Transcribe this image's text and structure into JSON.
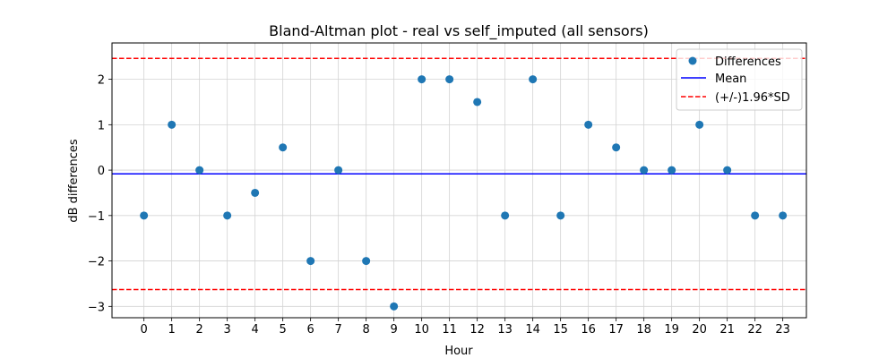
{
  "chart_data": {
    "type": "scatter",
    "title": "Bland-Altman plot - real vs self_imputed (all sensors)",
    "xlabel": "Hour",
    "ylabel": "dB differences",
    "x": [
      0,
      1,
      2,
      3,
      4,
      5,
      6,
      7,
      8,
      9,
      10,
      11,
      12,
      13,
      14,
      15,
      16,
      17,
      18,
      19,
      20,
      21,
      22,
      23
    ],
    "y": [
      -1,
      1,
      0,
      -1,
      -0.5,
      0.5,
      -2,
      0,
      -2,
      -3,
      2,
      2,
      1.5,
      -1,
      2,
      -1,
      1,
      0.5,
      0,
      0,
      1,
      0,
      -1,
      -1
    ],
    "xlim": [
      -1.15,
      23.85
    ],
    "ylim": [
      -3.25,
      2.8
    ],
    "xticks": [
      "0",
      "1",
      "2",
      "3",
      "4",
      "5",
      "6",
      "7",
      "8",
      "9",
      "10",
      "11",
      "12",
      "13",
      "14",
      "15",
      "16",
      "17",
      "18",
      "19",
      "20",
      "21",
      "22",
      "23"
    ],
    "yticks": [
      -3,
      -2,
      -1,
      0,
      1,
      2
    ],
    "ytick_labels": [
      "−3",
      "−2",
      "−1",
      "0",
      "1",
      "2"
    ],
    "mean": -0.0833,
    "upper_limit": 2.46,
    "lower_limit": -2.63,
    "grid": true,
    "legend_position": "top-right",
    "legend": [
      "Differences",
      "Mean",
      "(+/-)1.96*SD"
    ],
    "colors": {
      "points": "#1f77b4",
      "mean": "#0000ff",
      "limits": "#ff0000",
      "grid": "#d3d3d3"
    }
  }
}
